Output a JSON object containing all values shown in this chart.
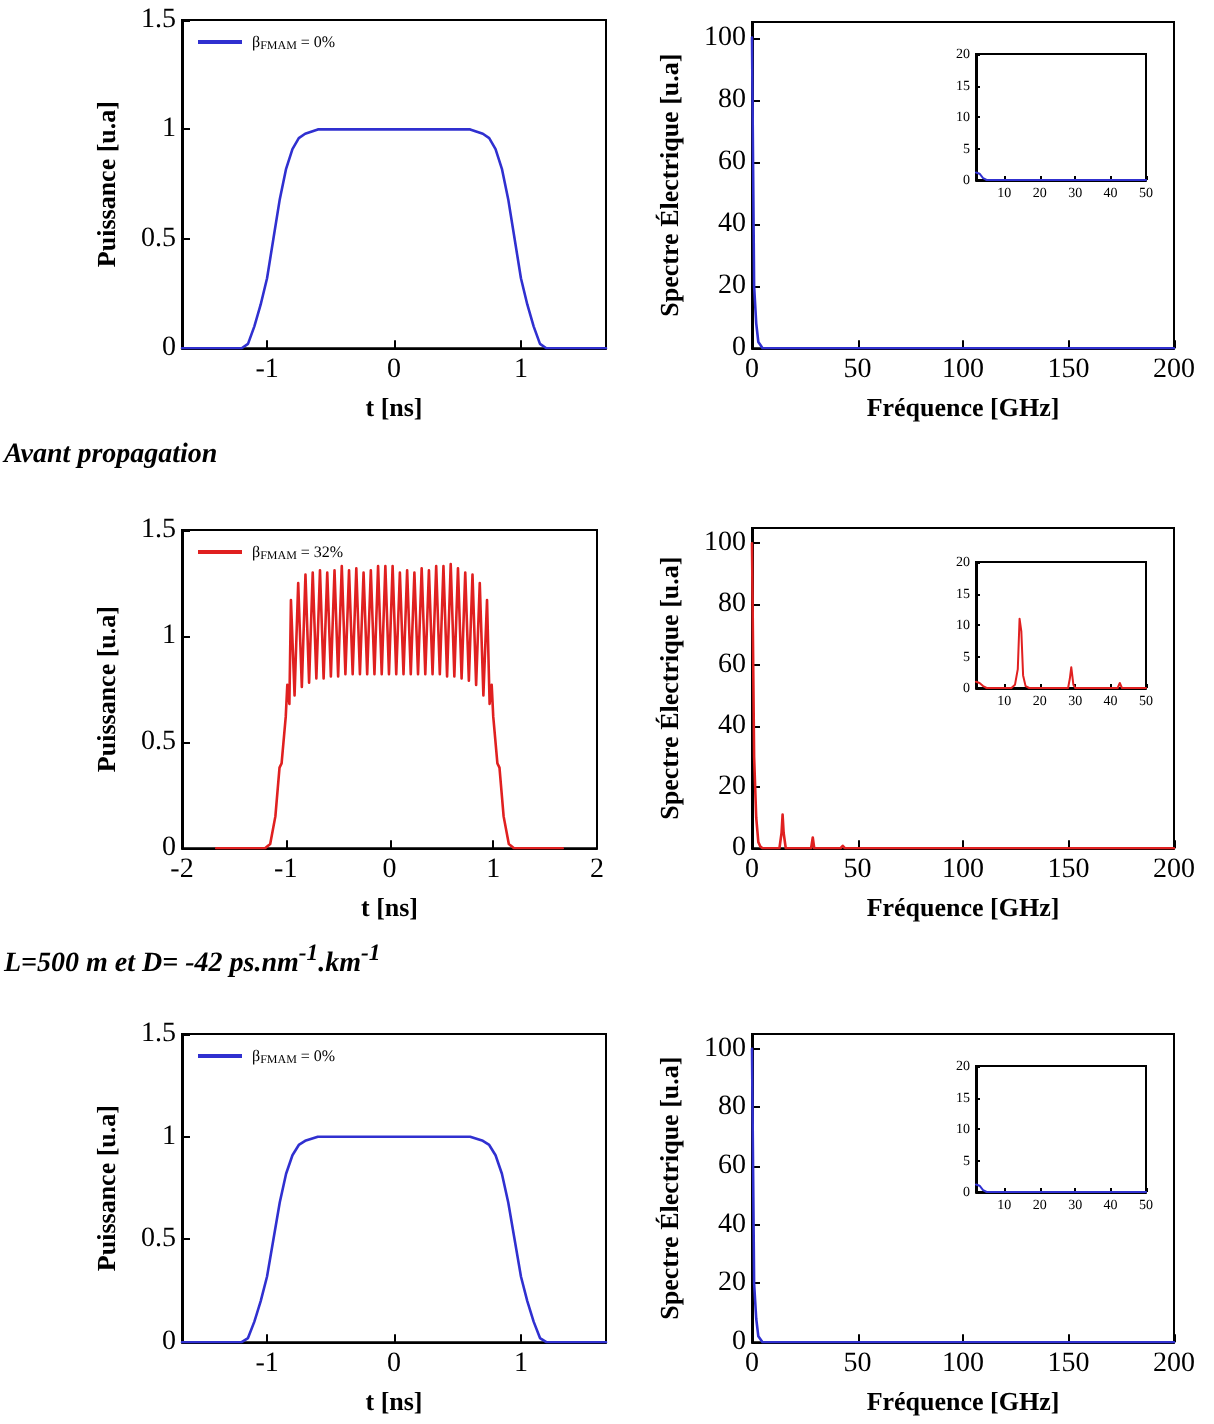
{
  "chart_data": [
    {
      "type": "line",
      "xlabel": "t [ns]",
      "ylabel": "Puissance [u.a]",
      "xlim": [
        -1.67,
        1.67
      ],
      "xticks": [
        -1,
        0,
        1
      ],
      "ylim": [
        0,
        1.5
      ],
      "yticks": [
        0,
        0.5,
        1,
        1.5
      ],
      "legend": "top left",
      "annotations": [
        "Avant propagation"
      ],
      "series": [
        {
          "name": "β$_{FMAM}$ = 0%",
          "color": "#3030d0",
          "x": [
            -1.67,
            -1.2,
            -1.15,
            -1.1,
            -1.05,
            -1.0,
            -0.95,
            -0.9,
            -0.85,
            -0.8,
            -0.75,
            -0.7,
            -0.6,
            0,
            0.6,
            0.7,
            0.75,
            0.8,
            0.85,
            0.9,
            0.95,
            1.0,
            1.05,
            1.1,
            1.15,
            1.2,
            1.67
          ],
          "values": [
            0,
            0,
            0.02,
            0.1,
            0.2,
            0.32,
            0.5,
            0.68,
            0.82,
            0.91,
            0.96,
            0.98,
            1,
            1,
            1,
            0.98,
            0.96,
            0.91,
            0.82,
            0.68,
            0.5,
            0.32,
            0.2,
            0.1,
            0.02,
            0,
            0
          ]
        }
      ]
    },
    {
      "type": "line",
      "xlabel": "Fréquence [GHz]",
      "ylabel": "Spectre Électrique [u.a]",
      "xlim": [
        0,
        200
      ],
      "xticks": [
        0,
        50,
        100,
        150,
        200
      ],
      "ylim": [
        0,
        105
      ],
      "yticks": [
        0,
        20,
        40,
        60,
        80,
        100
      ],
      "series": [
        {
          "color": "#3030d0",
          "x": [
            0,
            0.5,
            1,
            2,
            3,
            4,
            5,
            200
          ],
          "values": [
            100,
            60,
            20,
            8,
            2,
            1,
            0,
            0
          ]
        }
      ]
    },
    {
      "type": "line",
      "xlim": [
        2,
        50
      ],
      "xticks": [
        10,
        20,
        30,
        40,
        50
      ],
      "ylim": [
        0,
        20
      ],
      "yticks": [
        0,
        5,
        10,
        15,
        20
      ],
      "series": [
        {
          "color": "#3030d0",
          "x": [
            2,
            3,
            4,
            5,
            50
          ],
          "values": [
            1.2,
            1,
            0.3,
            0,
            0
          ]
        }
      ]
    },
    {
      "type": "line",
      "xlabel": "t [ns]",
      "ylabel": "Puissance [u.a]",
      "xlim": [
        -2,
        2
      ],
      "xticks": [
        -2,
        -1,
        0,
        1,
        2
      ],
      "ylim": [
        0,
        1.5
      ],
      "yticks": [
        0,
        0.5,
        1,
        1.5
      ],
      "legend": "top left",
      "annotations": [
        "L=500 m et D= -42 ps.nm$^{-1}$.km$^{-1}$"
      ],
      "series": [
        {
          "name": "β$_{FMAM}$ = 32%",
          "color": "#e02020",
          "x": [
            -1.67,
            -1.2,
            -1.15,
            -1.1,
            -1.06,
            -1.04,
            -1.0,
            -0.985,
            -0.965,
            -0.95,
            -0.915,
            -0.88,
            -0.845,
            -0.81,
            -0.775,
            -0.74,
            -0.705,
            -0.67,
            -0.635,
            -0.6,
            -0.565,
            -0.53,
            -0.495,
            -0.46,
            -0.425,
            -0.39,
            -0.355,
            -0.32,
            -0.285,
            -0.25,
            -0.215,
            -0.18,
            -0.145,
            -0.11,
            -0.075,
            -0.04,
            -0.005,
            0.03,
            0.065,
            0.1,
            0.135,
            0.17,
            0.205,
            0.24,
            0.275,
            0.31,
            0.345,
            0.38,
            0.415,
            0.45,
            0.485,
            0.52,
            0.555,
            0.59,
            0.625,
            0.66,
            0.695,
            0.73,
            0.765,
            0.8,
            0.835,
            0.87,
            0.905,
            0.94,
            0.965,
            0.985,
            1.0,
            1.04,
            1.06,
            1.1,
            1.15,
            1.2,
            1.67
          ],
          "values": [
            0,
            0,
            0.02,
            0.15,
            0.38,
            0.4,
            0.62,
            0.77,
            0.68,
            1.17,
            0.72,
            1.25,
            0.76,
            1.29,
            0.78,
            1.3,
            0.8,
            1.31,
            0.8,
            1.3,
            0.81,
            1.31,
            0.81,
            1.33,
            0.82,
            1.31,
            0.82,
            1.32,
            0.82,
            1.3,
            0.82,
            1.31,
            0.82,
            1.33,
            0.82,
            1.33,
            0.82,
            1.33,
            0.82,
            1.3,
            0.82,
            1.31,
            0.82,
            1.3,
            0.82,
            1.32,
            0.82,
            1.31,
            0.82,
            1.33,
            0.82,
            1.33,
            0.81,
            1.34,
            0.81,
            1.32,
            0.8,
            1.3,
            0.79,
            1.29,
            0.77,
            1.25,
            0.72,
            1.17,
            0.68,
            0.77,
            0.62,
            0.4,
            0.38,
            0.15,
            0.02,
            0,
            0
          ]
        }
      ]
    },
    {
      "type": "line",
      "xlabel": "Fréquence [GHz]",
      "ylabel": "Spectre Électrique [u.a]",
      "xlim": [
        0,
        200
      ],
      "xticks": [
        0,
        50,
        100,
        150,
        200
      ],
      "ylim": [
        0,
        105
      ],
      "yticks": [
        0,
        20,
        40,
        60,
        80,
        100
      ],
      "series": [
        {
          "color": "#e02020",
          "x": [
            0,
            1,
            2,
            3,
            4,
            5,
            13,
            14,
            14.5,
            15,
            16,
            28,
            28.8,
            29.5,
            42,
            43,
            44,
            200
          ],
          "values": [
            100,
            30,
            10,
            2,
            0.5,
            0,
            0,
            5,
            11,
            5,
            0,
            0,
            3.5,
            0,
            0,
            0.8,
            0,
            0
          ]
        }
      ]
    },
    {
      "type": "line",
      "xlim": [
        2,
        50
      ],
      "xticks": [
        10,
        20,
        30,
        40,
        50
      ],
      "ylim": [
        0,
        20
      ],
      "yticks": [
        0,
        5,
        10,
        15,
        20
      ],
      "series": [
        {
          "color": "#e02020",
          "x": [
            2,
            3,
            4,
            5,
            12,
            13,
            13.8,
            14.3,
            14.8,
            15.3,
            16,
            17,
            28,
            28.5,
            28.9,
            29.5,
            30,
            42,
            42.6,
            43.2,
            50
          ],
          "values": [
            1,
            0.8,
            0.3,
            0,
            0,
            0.5,
            3,
            11,
            9,
            2,
            0.3,
            0,
            0,
            1.5,
            3.3,
            0.5,
            0,
            0,
            0.8,
            0,
            0
          ]
        }
      ]
    },
    {
      "type": "line",
      "xlabel": "t [ns]",
      "ylabel": "Puissance [u.a]",
      "xlim": [
        -1.67,
        1.67
      ],
      "xticks": [
        -1,
        0,
        1
      ],
      "ylim": [
        0,
        1.5
      ],
      "yticks": [
        0,
        0.5,
        1,
        1.5
      ],
      "legend": "top left",
      "series": [
        {
          "name": "β$_{FMAM}$ = 0%",
          "color": "#3030d0",
          "x": [
            -1.67,
            -1.2,
            -1.15,
            -1.1,
            -1.05,
            -1.0,
            -0.95,
            -0.9,
            -0.85,
            -0.8,
            -0.75,
            -0.7,
            -0.6,
            0,
            0.6,
            0.7,
            0.75,
            0.8,
            0.85,
            0.9,
            0.95,
            1.0,
            1.05,
            1.1,
            1.15,
            1.2,
            1.67
          ],
          "values": [
            0,
            0,
            0.02,
            0.1,
            0.2,
            0.32,
            0.5,
            0.68,
            0.82,
            0.91,
            0.96,
            0.98,
            1,
            1,
            1,
            0.98,
            0.96,
            0.91,
            0.82,
            0.68,
            0.5,
            0.32,
            0.2,
            0.1,
            0.02,
            0,
            0
          ]
        }
      ]
    },
    {
      "type": "line",
      "xlabel": "Fréquence [GHz]",
      "ylabel": "Spectre Électrique [u.a]",
      "xlim": [
        0,
        200
      ],
      "xticks": [
        0,
        50,
        100,
        150,
        200
      ],
      "ylim": [
        0,
        105
      ],
      "yticks": [
        0,
        20,
        40,
        60,
        80,
        100
      ],
      "series": [
        {
          "color": "#3030d0",
          "x": [
            0,
            0.5,
            1,
            2,
            3,
            4,
            5,
            200
          ],
          "values": [
            100,
            60,
            20,
            8,
            2,
            1,
            0,
            0
          ]
        }
      ]
    },
    {
      "type": "line",
      "xlim": [
        2,
        50
      ],
      "xticks": [
        10,
        20,
        30,
        40,
        50
      ],
      "ylim": [
        0,
        20
      ],
      "yticks": [
        0,
        5,
        10,
        15,
        20
      ],
      "series": [
        {
          "color": "#3030d0",
          "x": [
            2,
            3,
            4,
            5,
            50
          ],
          "values": [
            1.2,
            1,
            0.3,
            0,
            0
          ]
        }
      ]
    }
  ]
}
